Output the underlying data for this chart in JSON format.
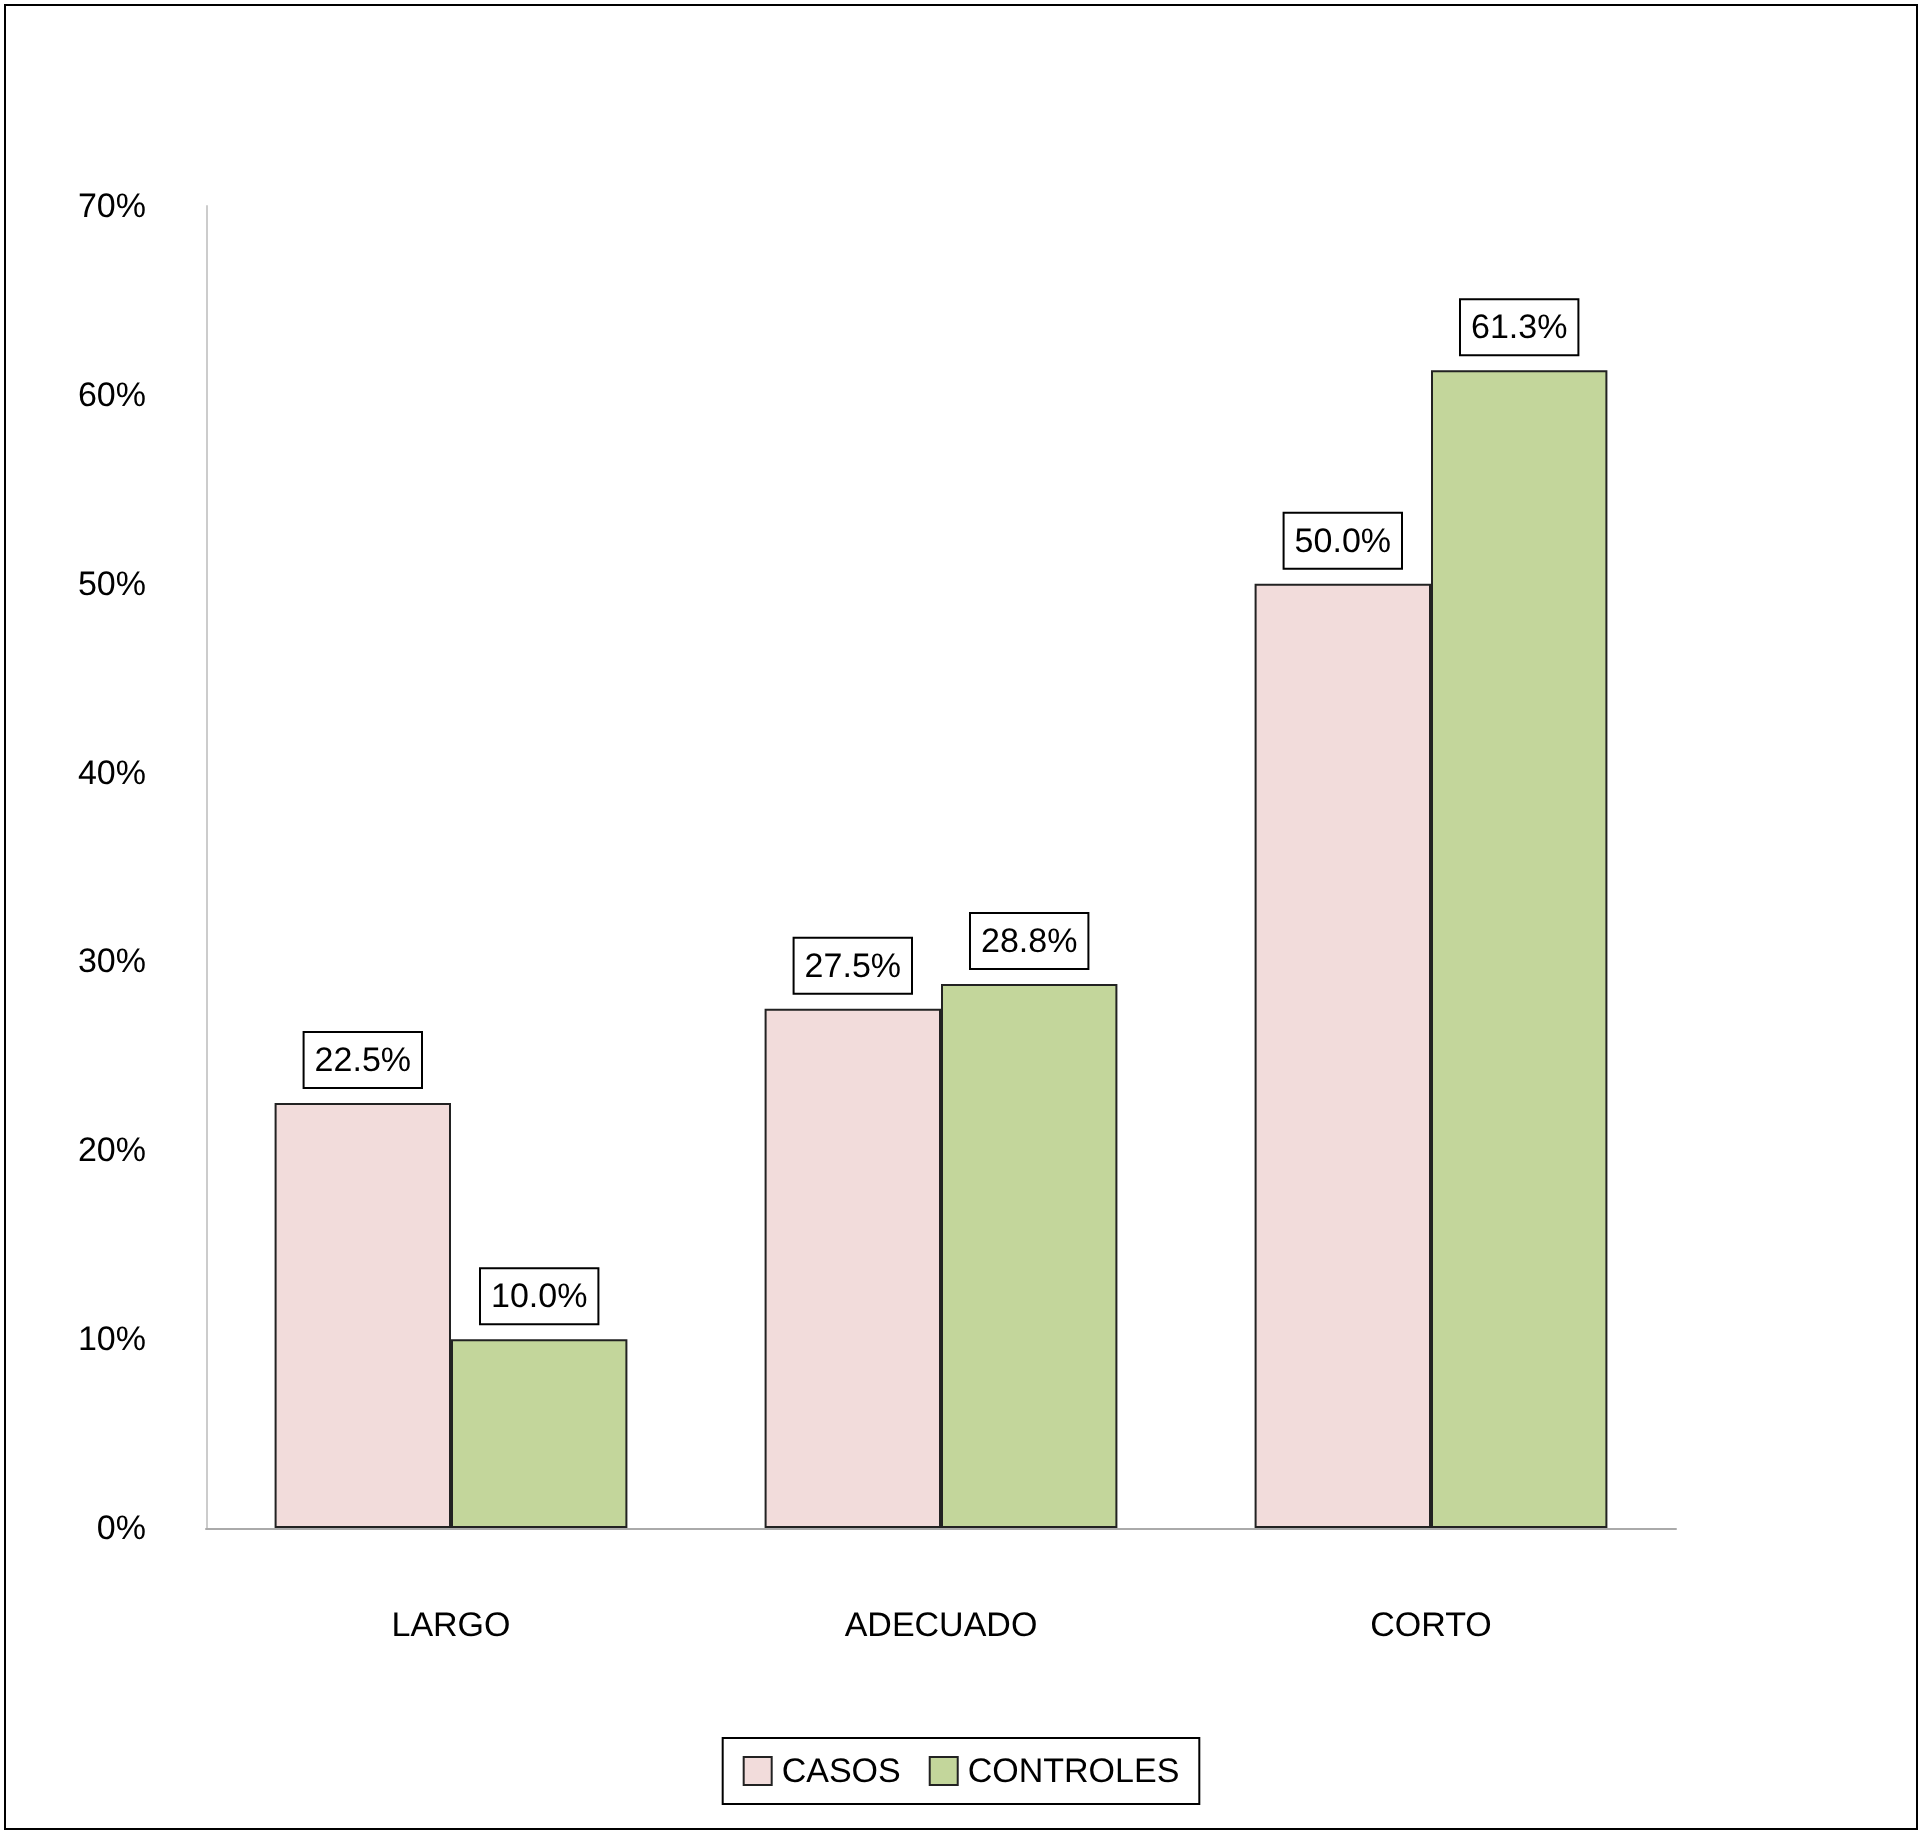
{
  "chart_data": {
    "type": "bar",
    "categories": [
      "LARGO",
      "ADECUADO",
      "CORTO"
    ],
    "series": [
      {
        "name": "CASOS",
        "color": "#f2dcdb",
        "values": [
          22.5,
          27.5,
          50.0
        ],
        "value_labels": [
          "22.5%",
          "27.5%",
          "50.0%"
        ]
      },
      {
        "name": "CONTROLES",
        "color": "#c3d69b",
        "values": [
          10.0,
          28.8,
          61.3
        ],
        "value_labels": [
          "10.0%",
          "28.8%",
          "61.3%"
        ]
      }
    ],
    "ylim": [
      0,
      70
    ],
    "yticks": [
      {
        "value": 0,
        "label": "0%"
      },
      {
        "value": 10,
        "label": "10%"
      },
      {
        "value": 20,
        "label": "20%"
      },
      {
        "value": 30,
        "label": "30%"
      },
      {
        "value": 40,
        "label": "40%"
      },
      {
        "value": 50,
        "label": "50%"
      },
      {
        "value": 60,
        "label": "60%"
      },
      {
        "value": 70,
        "label": "70%"
      }
    ],
    "grid": false,
    "legend": "bottom"
  }
}
